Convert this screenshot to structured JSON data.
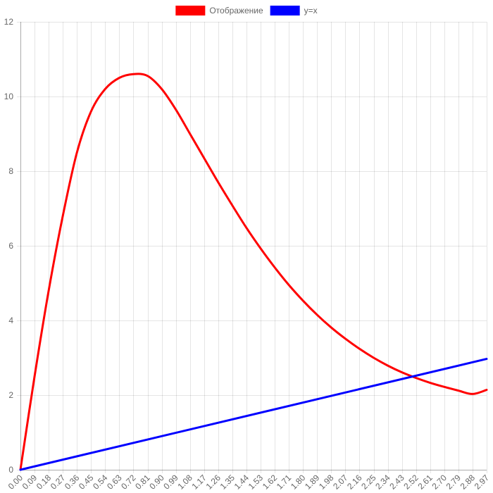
{
  "chart_data": {
    "type": "line",
    "title": "",
    "xlabel": "",
    "ylabel": "",
    "legend": {
      "position": "top"
    },
    "grid": true,
    "xlim": [
      0,
      2.97
    ],
    "ylim": [
      0,
      12
    ],
    "x_tick_step": 0.09,
    "y_ticks": [
      0,
      2,
      4,
      6,
      8,
      10,
      12
    ],
    "x_ticks": [
      "0.00",
      "0.09",
      "0.18",
      "0.27",
      "0.36",
      "0.45",
      "0.54",
      "0.63",
      "0.72",
      "0.81",
      "0.90",
      "0.99",
      "1.08",
      "1.17",
      "1.26",
      "1.35",
      "1.44",
      "1.53",
      "1.62",
      "1.71",
      "1.80",
      "1.89",
      "1.98",
      "2.07",
      "2.16",
      "2.25",
      "2.34",
      "2.43",
      "2.52",
      "2.61",
      "2.70",
      "2.79",
      "2.88",
      "2.97"
    ],
    "series": [
      {
        "name": "Отображение",
        "color": "#ff0000",
        "x": [
          0.0,
          0.09,
          0.18,
          0.27,
          0.36,
          0.45,
          0.54,
          0.63,
          0.72,
          0.81,
          0.9,
          0.99,
          1.08,
          1.17,
          1.26,
          1.35,
          1.44,
          1.53,
          1.62,
          1.71,
          1.8,
          1.89,
          1.98,
          2.07,
          2.16,
          2.25,
          2.34,
          2.43,
          2.52,
          2.61,
          2.7,
          2.79,
          2.88,
          2.97
        ],
        "values": [
          0.0,
          2.5,
          4.8,
          6.8,
          8.5,
          9.6,
          10.2,
          10.5,
          10.6,
          10.55,
          10.2,
          9.65,
          9.0,
          8.35,
          7.7,
          7.08,
          6.48,
          5.93,
          5.42,
          4.95,
          4.53,
          4.15,
          3.81,
          3.51,
          3.24,
          3.0,
          2.79,
          2.61,
          2.46,
          2.33,
          2.22,
          2.12,
          2.03,
          2.14
        ]
      },
      {
        "name": "y=x",
        "color": "#0000ff",
        "x": [
          0.0,
          2.97
        ],
        "values": [
          0.0,
          2.97
        ]
      }
    ]
  }
}
